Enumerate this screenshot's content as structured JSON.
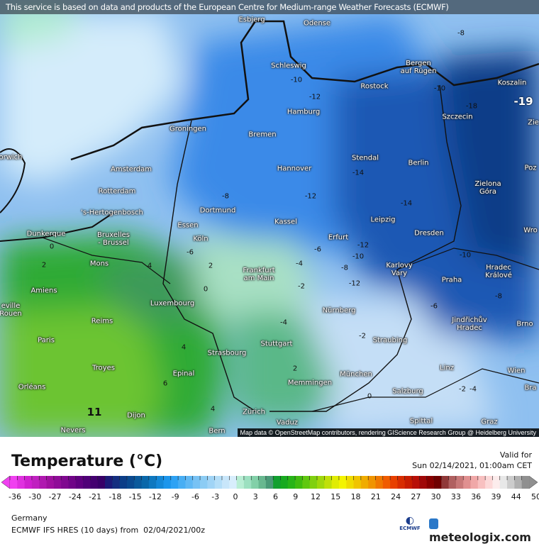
{
  "banner": "This service is based on data and products of the European Centre for Medium-range Weather Forecasts (ECMWF)",
  "attribution": "Map data © OpenStreetMap contributors, rendering GIScience Research Group @ Heidelberg University",
  "title": "Temperature (°C)",
  "valid": {
    "label": "Valid for",
    "time": "Sun 02/14/2021, 01:00am CET"
  },
  "region": "Germany",
  "model": "ECMWF IFS HRES (10 days) from  02/04/2021/00z",
  "logos": {
    "ecmwf": "ECMWF",
    "meteologix": "meteologix.com"
  },
  "colorbar": {
    "ticks": [
      "-36",
      "-30",
      "-27",
      "-24",
      "-21",
      "-18",
      "-15",
      "-12",
      "-9",
      "-6",
      "-3",
      "0",
      "3",
      "6",
      "9",
      "12",
      "15",
      "18",
      "21",
      "24",
      "27",
      "30",
      "33",
      "36",
      "39",
      "44",
      "50"
    ],
    "colors": [
      "#f040f0",
      "#e030e0",
      "#d020d0",
      "#c020c0",
      "#b018b0",
      "#a010a0",
      "#900c98",
      "#800890",
      "#700488",
      "#600080",
      "#500078",
      "#440070",
      "#380068",
      "#1c1a78",
      "#142e80",
      "#0c3e88",
      "#0a4a90",
      "#0a5a9c",
      "#0a68aa",
      "#0e78c0",
      "#1488d8",
      "#1c96ec",
      "#2ea2f4",
      "#48aef4",
      "#60b8f4",
      "#78c2f4",
      "#8cccf4",
      "#a0d4f6",
      "#b4def8",
      "#c8e6fa",
      "#d8eefc",
      "#b8eed4",
      "#9ce0c0",
      "#82d0a8",
      "#68b890",
      "#4a9a78",
      "#12a030",
      "#18aa20",
      "#28b418",
      "#40bc10",
      "#60c810",
      "#80d010",
      "#a0d80c",
      "#c0e008",
      "#e0ec04",
      "#f4f400",
      "#f0dc00",
      "#f0c400",
      "#f0ac00",
      "#f09400",
      "#f07800",
      "#f05c00",
      "#e84000",
      "#d82c00",
      "#c81c00",
      "#b81008",
      "#a00808",
      "#880000",
      "#700000",
      "#903838",
      "#b06060",
      "#c87878",
      "#e09090",
      "#f0a8a8",
      "#f8c0c0",
      "#fcd8d8",
      "#fcecec",
      "#e8e8e8",
      "#cccccc",
      "#b0b0b0",
      "#909090"
    ]
  },
  "cities": [
    "Esbjerg",
    "Odense",
    "Schleswig",
    "Bergen\nauf Rügen",
    "Rostock",
    "Koszalin",
    "Hamburg",
    "Szczecin",
    "Groningen",
    "Bremen",
    "orwich",
    "Amsterdam",
    "Hannover",
    "Stendal",
    "Berlin",
    "Zielona\nGóra",
    "Rotterdam",
    "Dortmund",
    "'s-Hertogenbosch",
    "Leipzig",
    "Kassel",
    "Essen",
    "Dunkerque",
    "Bruxelles\n- Brussel",
    "Köln",
    "Erfurt",
    "Dresden",
    "Mons",
    "Karlovy\nVary",
    "Frankfurt\nam Main",
    "Hradec\nKrálové",
    "Amiens",
    "Praha",
    "Luxembourg",
    "Nürnberg",
    "eville\nRouen",
    "Jindřichův\nHradec",
    "Reims",
    "Brno",
    "Paris",
    "Straubing",
    "Stuttgart",
    "Strasbourg",
    "Troyes",
    "Epinal",
    "München",
    "Linz",
    "Wien",
    "Memmingen",
    "Orléans",
    "Salzburg",
    "Dijon",
    "Zürich",
    "Vaduz",
    "Bern",
    "Nevers",
    "Spittal",
    "Graz",
    "Poz",
    "Wro",
    "Zie",
    "Bra"
  ],
  "contour_labels": [
    "-19",
    "-12",
    "-10",
    "-10",
    "-8",
    "-12",
    "-14",
    "-14",
    "-10",
    "-10",
    "-12",
    "-6",
    "-4",
    "-8",
    "-6",
    "-8",
    "-2",
    "0",
    "2",
    "2",
    "4",
    "0",
    "-2",
    "0",
    "2",
    "4",
    "4",
    "6",
    "11",
    "-2",
    "-4",
    "-8",
    "-6",
    "-18",
    "-12",
    "-4"
  ],
  "map_colors": {
    "sea_light": "#d4ecfb",
    "mint": "#b0ecd0",
    "green": "#2eaa34",
    "bright_green": "#6cc430",
    "dark_green": "#3d9a5a",
    "pale_green": "#a8e0c4",
    "mid_green": "#5ab888",
    "blue": "#3a8ae8",
    "dark_blue": "#1a58b4",
    "darkest_blue": "#0e3e88",
    "alps_blue": "#c4def6"
  }
}
